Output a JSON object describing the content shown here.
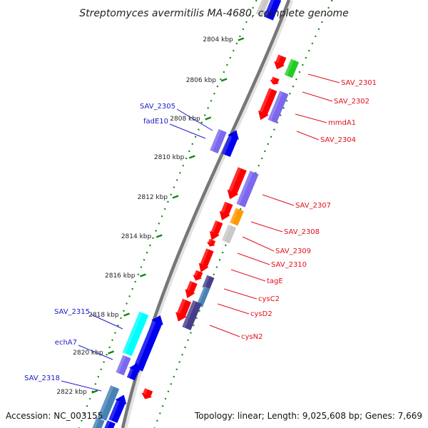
{
  "title": "Streptomyces avermitilis MA-4680, complete genome",
  "footer": {
    "accession": "Accession: NC_003155",
    "topology": "Topology: linear; Length: 9,025,608 bp; Genes: 7,669"
  },
  "ticks": [
    {
      "label": "2804 kbp"
    },
    {
      "label": "2806 kbp"
    },
    {
      "label": "2808 kbp"
    },
    {
      "label": "2810 kbp"
    },
    {
      "label": "2812 kbp"
    },
    {
      "label": "2814 kbp"
    },
    {
      "label": "2816 kbp"
    },
    {
      "label": "2818 kbp"
    },
    {
      "label": "2820 kbp"
    },
    {
      "label": "2822 kbp"
    }
  ],
  "genes_forward": [
    {
      "label": "SAV_2301"
    },
    {
      "label": "SAV_2302"
    },
    {
      "label": "mmdA1"
    },
    {
      "label": "SAV_2304"
    },
    {
      "label": "SAV_2307"
    },
    {
      "label": "SAV_2308"
    },
    {
      "label": "SAV_2309"
    },
    {
      "label": "SAV_2310"
    },
    {
      "label": "tagE"
    },
    {
      "label": "cysC2"
    },
    {
      "label": "cysD2"
    },
    {
      "label": "cysN2"
    }
  ],
  "genes_reverse": [
    {
      "label": "SAV_2305"
    },
    {
      "label": "fadE10"
    },
    {
      "label": "SAV_2315"
    },
    {
      "label": "echA7"
    },
    {
      "label": "SAV_2318"
    }
  ],
  "colors": {
    "red": "#ff0000",
    "blue": "#0000ee",
    "slate": "#7b68ee",
    "navy": "#483d8b",
    "green": "#22cc22",
    "orange": "#ff9900",
    "gray": "#c8c8c8",
    "cyan": "#00ffff",
    "steel": "#4682b4",
    "dot_green": "#118811",
    "label_red": "#e0101b",
    "label_blue": "#1b1bc8"
  }
}
